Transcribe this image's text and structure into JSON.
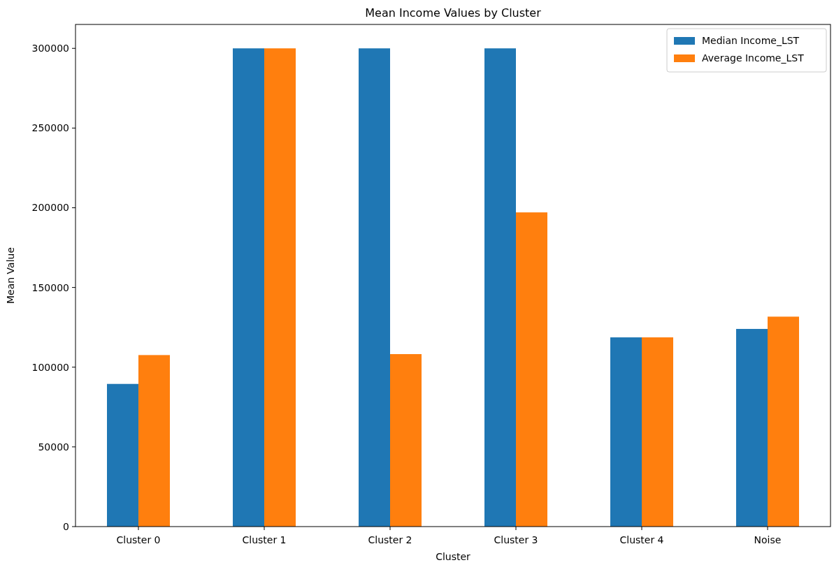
{
  "chart_data": {
    "type": "bar",
    "title": "Mean Income Values by Cluster",
    "xlabel": "Cluster",
    "ylabel": "Mean Value",
    "categories": [
      "Cluster 0",
      "Cluster 1",
      "Cluster 2",
      "Cluster 3",
      "Cluster 4",
      "Noise"
    ],
    "series": [
      {
        "name": "Median Income_LST",
        "color": "#1f77b4",
        "values": [
          89500,
          300000,
          300000,
          300000,
          118700,
          124000
        ]
      },
      {
        "name": "Average Income_LST",
        "color": "#ff7f0e",
        "values": [
          107600,
          300000,
          108200,
          197100,
          118700,
          131700
        ]
      }
    ],
    "ylim": [
      0,
      315000
    ],
    "yticks": [
      0,
      50000,
      100000,
      150000,
      200000,
      250000,
      300000
    ],
    "grid": false,
    "legend": "top right"
  }
}
